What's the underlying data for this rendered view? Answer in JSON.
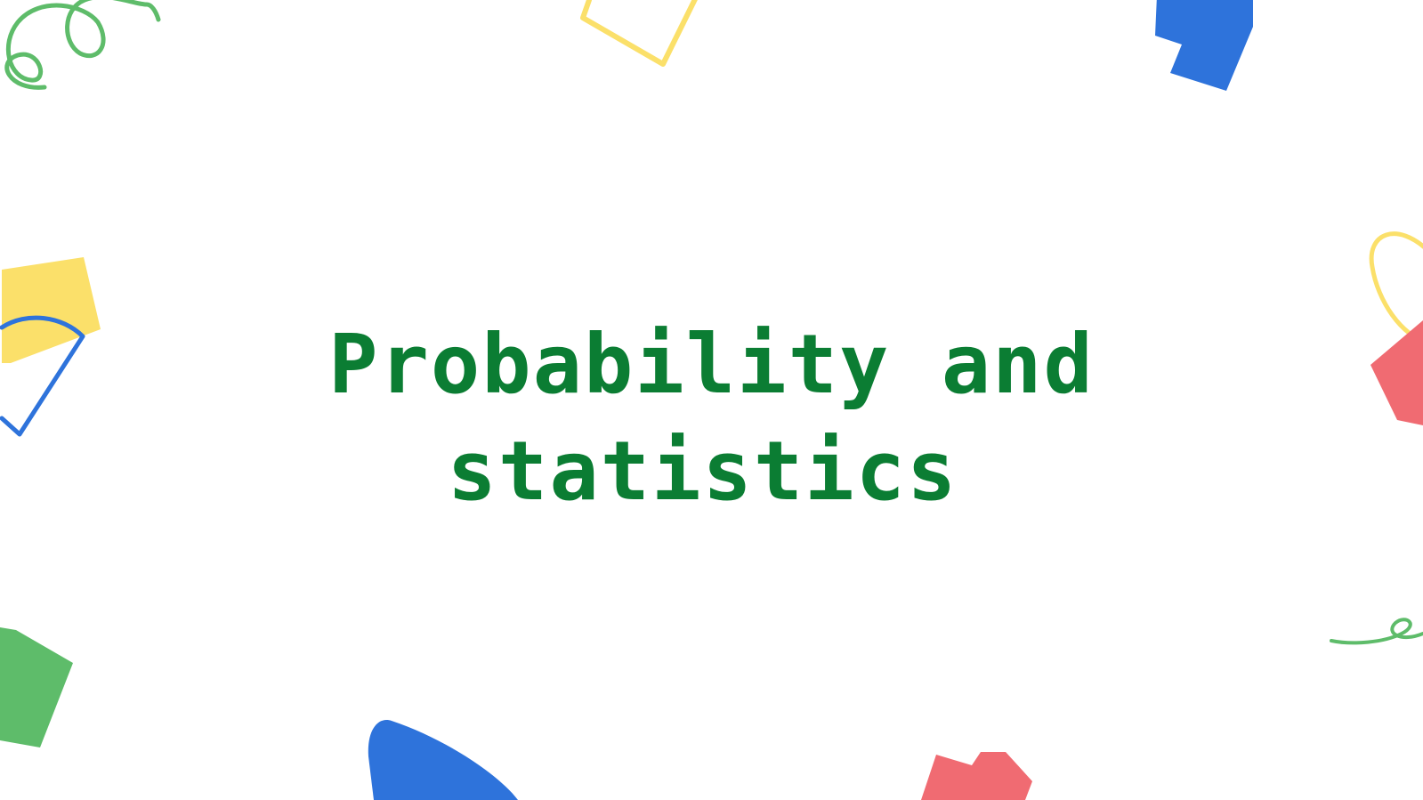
{
  "slide": {
    "title_line_1": "Probability and",
    "title_line_2": "statistics"
  },
  "colors": {
    "title": "#0b7d33",
    "green": "#5ebc6a",
    "yellow": "#fbe06a",
    "blue": "#2e73db",
    "red": "#f06b72",
    "background": "#ffffff"
  },
  "decorations": [
    "green-squiggle-icon",
    "yellow-outline-shape-icon",
    "blue-block-icon",
    "yellow-square-icon",
    "blue-outline-wedge-icon",
    "yellow-loop-icon",
    "red-shape-icon",
    "green-squiggle-right-icon",
    "green-block-icon",
    "blue-semicircle-icon",
    "red-block-icon"
  ]
}
